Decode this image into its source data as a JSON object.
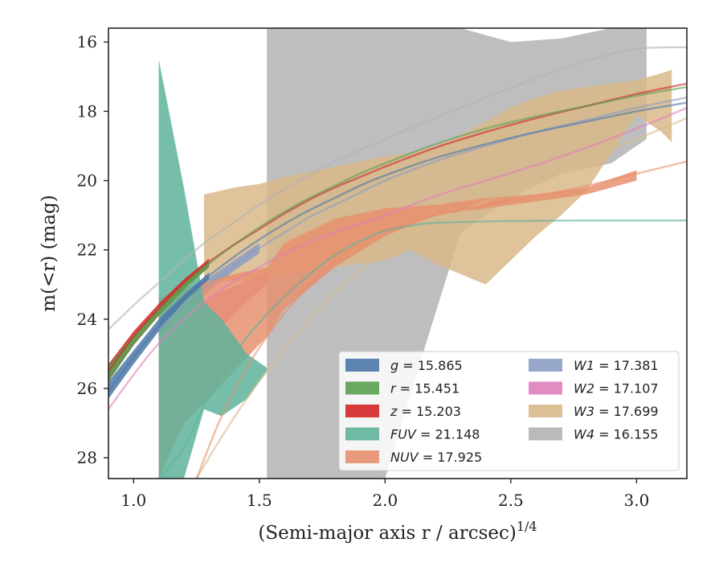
{
  "chart_data": {
    "type": "area",
    "title": "",
    "xlabel": "(Semi-major axis r / arcsec)",
    "xlabel_superscript": "1/4",
    "ylabel": "m(<r) (mag)",
    "xlim": [
      0.9,
      3.2
    ],
    "ylim": [
      28.6,
      15.6
    ],
    "y_inverted": true,
    "xticks": [
      1.0,
      1.5,
      2.0,
      2.5,
      3.0
    ],
    "xtick_labels": [
      "1.0",
      "1.5",
      "2.0",
      "2.5",
      "3.0"
    ],
    "yticks": [
      16,
      18,
      20,
      22,
      24,
      26,
      28
    ],
    "ytick_labels": [
      "16",
      "18",
      "20",
      "22",
      "24",
      "26",
      "28"
    ],
    "grid": false,
    "legend_position": "lower-right",
    "legend_columns": 2,
    "series": [
      {
        "name": "g = 15.865",
        "legend_var": "g",
        "legend_value": "15.865",
        "color": "#4c78a8",
        "curve": {
          "x": [
            0.9,
            1.0,
            1.1,
            1.2,
            1.3,
            1.4,
            1.5,
            1.6,
            1.7,
            1.8,
            1.9,
            2.0,
            2.2,
            2.4,
            2.6,
            2.8,
            3.0,
            3.2
          ],
          "y": [
            26.1,
            25.1,
            24.2,
            23.4,
            22.75,
            22.2,
            21.7,
            21.25,
            20.85,
            20.5,
            20.15,
            19.85,
            19.35,
            18.95,
            18.6,
            18.3,
            18.0,
            17.75
          ]
        },
        "band": {
          "x": [
            0.9,
            1.0,
            1.1,
            1.2,
            1.3
          ],
          "y_low": [
            25.8,
            24.9,
            24.0,
            23.3,
            22.65
          ],
          "y_high": [
            26.3,
            25.3,
            24.35,
            23.5,
            22.85
          ]
        }
      },
      {
        "name": "r = 15.451",
        "legend_var": "r",
        "legend_value": "15.451",
        "color": "#59a14f",
        "curve": {
          "x": [
            0.9,
            1.0,
            1.1,
            1.2,
            1.3,
            1.4,
            1.5,
            1.6,
            1.7,
            1.8,
            1.9,
            2.0,
            2.2,
            2.4,
            2.6,
            2.8,
            3.0,
            3.2
          ],
          "y": [
            25.6,
            24.6,
            23.8,
            23.05,
            22.4,
            21.85,
            21.35,
            20.9,
            20.5,
            20.15,
            19.8,
            19.5,
            18.95,
            18.5,
            18.15,
            17.85,
            17.55,
            17.3
          ]
        },
        "band": {
          "x": [
            0.9,
            1.0,
            1.1,
            1.2,
            1.3
          ],
          "y_low": [
            25.35,
            24.45,
            23.65,
            22.95,
            22.3
          ],
          "y_high": [
            25.8,
            24.75,
            23.9,
            23.15,
            22.5
          ]
        }
      },
      {
        "name": "z = 15.203",
        "legend_var": "z",
        "legend_value": "15.203",
        "color": "#d62728",
        "curve": {
          "x": [
            0.9,
            1.0,
            1.1,
            1.2,
            1.3,
            1.4,
            1.5,
            1.6,
            1.7,
            1.8,
            1.9,
            2.0,
            2.2,
            2.4,
            2.6,
            2.8,
            3.0,
            3.2
          ],
          "y": [
            25.5,
            24.5,
            23.7,
            22.95,
            22.35,
            21.85,
            21.4,
            20.95,
            20.55,
            20.2,
            19.9,
            19.6,
            19.05,
            18.6,
            18.2,
            17.85,
            17.5,
            17.2
          ]
        },
        "band": {
          "x": [
            0.9,
            1.0,
            1.1,
            1.2,
            1.3
          ],
          "y_low": [
            25.3,
            24.35,
            23.55,
            22.85,
            22.25
          ],
          "y_high": [
            25.8,
            24.75,
            23.9,
            23.1,
            22.5
          ]
        }
      },
      {
        "name": "FUV = 21.148",
        "legend_var": "FUV",
        "legend_value": "21.148",
        "color": "#5fb39b",
        "curve": {
          "x": [
            1.1,
            1.2,
            1.3,
            1.4,
            1.5,
            1.6,
            1.7,
            1.8,
            1.9,
            2.0,
            2.1,
            2.2,
            2.4,
            2.6,
            2.8,
            3.0,
            3.2
          ],
          "y": [
            28.6,
            27.7,
            26.2,
            25.0,
            24.1,
            23.35,
            22.7,
            22.15,
            21.75,
            21.45,
            21.3,
            21.22,
            21.18,
            21.16,
            21.15,
            21.15,
            21.15
          ]
        },
        "band": {
          "x": [
            1.1,
            1.2,
            1.28,
            1.35,
            1.45,
            1.53
          ],
          "y_low": [
            16.5,
            20.2,
            23.5,
            24.0,
            25.0,
            25.4
          ],
          "y_high": [
            28.6,
            28.6,
            26.6,
            26.8,
            26.3,
            25.5
          ]
        }
      },
      {
        "name": "NUV = 17.925",
        "legend_var": "NUV",
        "legend_value": "17.925",
        "color": "#e8906d",
        "curve": {
          "x": [
            1.25,
            1.35,
            1.45,
            1.55,
            1.65,
            1.75,
            1.85,
            1.95,
            2.05,
            2.2,
            2.4,
            2.6,
            2.8,
            3.0,
            3.2
          ],
          "y": [
            28.6,
            26.8,
            25.4,
            24.3,
            23.4,
            22.65,
            22.05,
            21.6,
            21.3,
            21.0,
            20.7,
            20.45,
            20.15,
            19.8,
            19.45
          ]
        },
        "band": {
          "x": [
            1.1,
            1.2,
            1.3,
            1.4,
            1.53,
            1.6,
            1.8,
            2.0,
            2.2,
            2.4,
            2.6,
            2.8,
            3.0
          ],
          "y_low": [
            23.4,
            23.1,
            22.9,
            22.7,
            22.5,
            21.8,
            21.1,
            20.8,
            20.7,
            20.5,
            20.4,
            20.2,
            19.7
          ],
          "y_high": [
            28.6,
            27.0,
            26.3,
            25.5,
            24.5,
            23.7,
            22.5,
            21.6,
            21.0,
            20.8,
            20.6,
            20.4,
            20.0
          ]
        }
      },
      {
        "name": "W1 = 17.381",
        "legend_var": "W1",
        "legend_value": "17.381",
        "color": "#8c9dc4",
        "curve": {
          "x": [
            1.1,
            1.2,
            1.3,
            1.4,
            1.5,
            1.6,
            1.7,
            1.8,
            1.9,
            2.0,
            2.2,
            2.4,
            2.6,
            2.8,
            3.0,
            3.2
          ],
          "y": [
            24.3,
            23.6,
            23.0,
            22.45,
            21.95,
            21.5,
            21.05,
            20.7,
            20.35,
            20.0,
            19.45,
            19.0,
            18.6,
            18.25,
            17.9,
            17.6
          ]
        },
        "band": {
          "x": [
            1.1,
            1.2,
            1.3,
            1.4,
            1.5
          ],
          "y_low": [
            24.1,
            23.4,
            22.8,
            22.3,
            21.8
          ],
          "y_high": [
            24.5,
            23.8,
            23.2,
            22.6,
            22.1
          ]
        }
      },
      {
        "name": "W2 = 17.107",
        "legend_var": "W2",
        "legend_value": "17.107",
        "color": "#e07fbd",
        "curve": {
          "x": [
            0.9,
            1.0,
            1.1,
            1.2,
            1.3,
            1.4,
            1.5,
            1.6,
            1.8,
            2.0,
            2.2,
            2.4,
            2.6,
            2.8,
            3.0,
            3.2
          ],
          "y": [
            26.6,
            25.6,
            24.7,
            24.0,
            23.4,
            22.9,
            22.5,
            22.1,
            21.5,
            21.0,
            20.45,
            20.0,
            19.55,
            19.05,
            18.5,
            17.9
          ]
        },
        "band": {
          "x": [
            1.28,
            1.35,
            1.45,
            1.53
          ],
          "y_low": [
            23.5,
            23.2,
            22.9,
            22.6
          ],
          "y_high": [
            24.9,
            24.2,
            23.5,
            23.0
          ]
        }
      },
      {
        "name": "W3 = 17.699",
        "legend_var": "W3",
        "legend_value": "17.699",
        "color": "#d8b98a",
        "curve": {
          "x": [
            1.25,
            1.35,
            1.45,
            1.55,
            1.65,
            1.75,
            1.85,
            1.95,
            2.05,
            2.2,
            2.4,
            2.6,
            2.8,
            3.0,
            3.2
          ],
          "y": [
            28.6,
            27.4,
            26.3,
            25.3,
            24.4,
            23.6,
            22.9,
            22.3,
            21.8,
            21.2,
            20.6,
            20.0,
            19.4,
            18.8,
            18.2
          ]
        },
        "band": {
          "x": [
            1.28,
            1.4,
            1.5,
            1.6,
            1.8,
            2.0,
            2.1,
            2.2,
            2.3,
            2.4,
            2.5,
            2.6,
            2.7,
            2.8,
            2.9,
            3.0,
            3.1,
            3.14
          ],
          "y_low": [
            20.4,
            20.2,
            20.1,
            19.9,
            19.6,
            19.3,
            19.2,
            19.0,
            18.7,
            18.3,
            17.9,
            17.6,
            17.4,
            17.3,
            17.2,
            17.1,
            16.9,
            16.8
          ],
          "y_high": [
            22.9,
            22.9,
            22.9,
            22.7,
            22.5,
            22.3,
            22.0,
            22.4,
            22.7,
            23.0,
            22.3,
            21.6,
            21.0,
            20.3,
            19.2,
            18.1,
            18.6,
            18.9
          ]
        }
      },
      {
        "name": "W4 = 16.155",
        "legend_var": "W4",
        "legend_value": "16.155",
        "color": "#b3b3b3",
        "curve": {
          "x": [
            0.9,
            1.0,
            1.1,
            1.2,
            1.3,
            1.4,
            1.5,
            1.6,
            1.8,
            2.0,
            2.2,
            2.4,
            2.6,
            2.8,
            3.0,
            3.2
          ],
          "y": [
            24.3,
            23.6,
            22.95,
            22.3,
            21.7,
            21.2,
            20.7,
            20.25,
            19.45,
            18.8,
            18.2,
            17.6,
            17.05,
            16.55,
            16.2,
            16.15
          ]
        },
        "band": {
          "x": [
            1.53,
            1.8,
            1.9,
            2.0,
            2.15,
            2.3,
            2.5,
            2.7,
            2.9,
            3.04
          ],
          "y_low": [
            15.6,
            15.6,
            15.6,
            15.6,
            15.6,
            15.6,
            16.0,
            15.9,
            15.6,
            15.6
          ],
          "y_high": [
            28.6,
            28.6,
            28.6,
            28.6,
            25.0,
            21.5,
            20.5,
            19.8,
            19.5,
            18.8
          ]
        }
      }
    ]
  }
}
